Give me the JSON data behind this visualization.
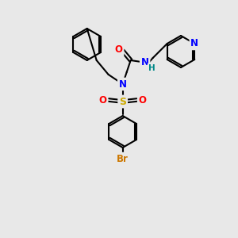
{
  "bg_color": "#e8e8e8",
  "bond_color": "#000000",
  "bond_width": 1.5,
  "atom_colors": {
    "N": "#0000ff",
    "O": "#ff0000",
    "S": "#ccaa00",
    "Br": "#cc7700",
    "H": "#008888",
    "C": "#000000"
  },
  "font_size": 7.5
}
